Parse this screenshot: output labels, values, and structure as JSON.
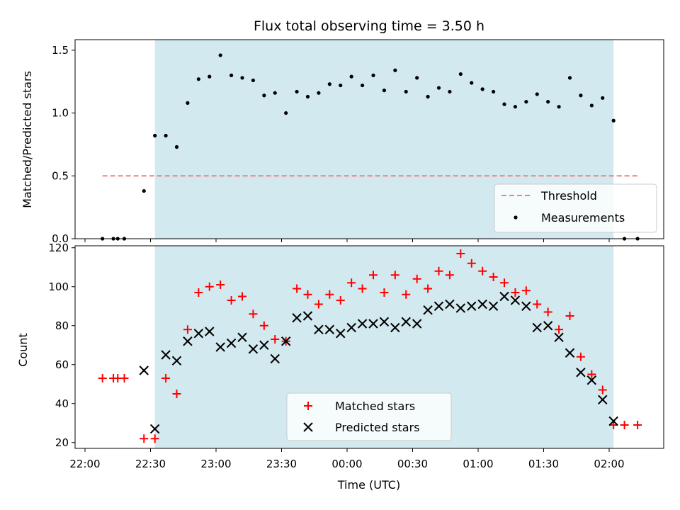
{
  "chart_data": [
    {
      "type": "scatter",
      "title": "Flux total observing time = 3.50 h",
      "ylabel": "Matched/Predicted stars",
      "xlabel": "",
      "ylim": [
        0,
        1.55
      ],
      "yticks": [
        "0.0",
        "0.5",
        "1.0",
        "1.5"
      ],
      "shaded_window": [
        "22:32",
        "02:02"
      ],
      "threshold": {
        "name": "Threshold",
        "value": 0.5,
        "x_start": "22:08",
        "x_end": "02:13",
        "color": "#f08080"
      },
      "series": [
        {
          "name": "Measurements",
          "color": "#000000",
          "x": [
            "22:08",
            "22:13",
            "22:15",
            "22:18",
            "22:27",
            "22:32",
            "22:37",
            "22:42",
            "22:47",
            "22:52",
            "22:57",
            "23:02",
            "23:07",
            "23:12",
            "23:17",
            "23:22",
            "23:27",
            "23:32",
            "23:37",
            "23:42",
            "23:47",
            "23:52",
            "23:57",
            "00:02",
            "00:07",
            "00:12",
            "00:17",
            "00:22",
            "00:27",
            "00:32",
            "00:37",
            "00:42",
            "00:47",
            "00:52",
            "00:57",
            "01:02",
            "01:07",
            "01:12",
            "01:17",
            "01:22",
            "01:27",
            "01:32",
            "01:37",
            "01:42",
            "01:47",
            "01:52",
            "01:57",
            "02:02",
            "02:07",
            "02:13"
          ],
          "y": [
            0,
            0,
            0,
            0,
            0.38,
            0.82,
            0.82,
            0.73,
            1.08,
            1.27,
            1.29,
            1.46,
            1.3,
            1.28,
            1.26,
            1.14,
            1.16,
            1.0,
            1.17,
            1.13,
            1.16,
            1.23,
            1.22,
            1.29,
            1.22,
            1.3,
            1.18,
            1.34,
            1.17,
            1.28,
            1.13,
            1.2,
            1.17,
            1.31,
            1.24,
            1.19,
            1.17,
            1.07,
            1.05,
            1.09,
            1.15,
            1.09,
            1.05,
            1.28,
            1.14,
            1.06,
            1.12,
            0.94,
            0,
            0
          ]
        }
      ]
    },
    {
      "type": "scatter",
      "title": "",
      "xlabel": "Time (UTC)",
      "ylabel": "Count",
      "ylim": [
        17,
        121
      ],
      "yticks": [
        "20",
        "40",
        "60",
        "80",
        "100",
        "120"
      ],
      "x_ticks": [
        "22:00",
        "22:30",
        "23:00",
        "23:30",
        "00:00",
        "00:30",
        "01:00",
        "01:30",
        "02:00"
      ],
      "shaded_window": [
        "22:32",
        "02:02"
      ],
      "series": [
        {
          "name": "Matched stars",
          "color": "#ff0000",
          "marker": "plus",
          "x": [
            "22:08",
            "22:13",
            "22:15",
            "22:18",
            "22:27",
            "22:32",
            "22:37",
            "22:42",
            "22:47",
            "22:52",
            "22:57",
            "23:02",
            "23:07",
            "23:12",
            "23:17",
            "23:22",
            "23:27",
            "23:32",
            "23:37",
            "23:42",
            "23:47",
            "23:52",
            "23:57",
            "00:02",
            "00:07",
            "00:12",
            "00:17",
            "00:22",
            "00:27",
            "00:32",
            "00:37",
            "00:42",
            "00:47",
            "00:52",
            "00:57",
            "01:02",
            "01:07",
            "01:12",
            "01:17",
            "01:22",
            "01:27",
            "01:32",
            "01:37",
            "01:42",
            "01:47",
            "01:52",
            "01:57",
            "02:02",
            "02:07",
            "02:13"
          ],
          "y": [
            53,
            53,
            53,
            53,
            22,
            22,
            53,
            45,
            78,
            97,
            100,
            101,
            93,
            95,
            86,
            80,
            73,
            72,
            99,
            96,
            91,
            96,
            93,
            102,
            99,
            106,
            97,
            106,
            96,
            104,
            99,
            108,
            106,
            117,
            112,
            108,
            105,
            102,
            97,
            98,
            91,
            87,
            78,
            85,
            64,
            55,
            47,
            29,
            29,
            29
          ]
        },
        {
          "name": "Predicted stars",
          "color": "#000000",
          "marker": "x",
          "x": [
            "22:27",
            "22:32",
            "22:37",
            "22:42",
            "22:47",
            "22:52",
            "22:57",
            "23:02",
            "23:07",
            "23:12",
            "23:17",
            "23:22",
            "23:27",
            "23:32",
            "23:37",
            "23:42",
            "23:47",
            "23:52",
            "23:57",
            "00:02",
            "00:07",
            "00:12",
            "00:17",
            "00:22",
            "00:27",
            "00:32",
            "00:37",
            "00:42",
            "00:47",
            "00:52",
            "00:57",
            "01:02",
            "01:07",
            "01:12",
            "01:17",
            "01:22",
            "01:27",
            "01:32",
            "01:37",
            "01:42",
            "01:47",
            "01:52",
            "01:57",
            "02:02"
          ],
          "y": [
            57,
            27,
            65,
            62,
            72,
            76,
            77,
            69,
            71,
            74,
            68,
            70,
            63,
            72,
            84,
            85,
            78,
            78,
            76,
            79,
            81,
            81,
            82,
            79,
            82,
            81,
            88,
            90,
            91,
            89,
            90,
            91,
            90,
            95,
            93,
            90,
            79,
            80,
            74,
            66,
            56,
            52,
            42,
            31
          ]
        }
      ]
    }
  ],
  "legend_top": [
    "Threshold",
    "Measurements"
  ],
  "legend_bottom": [
    "Matched stars",
    "Predicted stars"
  ],
  "colors": {
    "shade": "#d2e9ef",
    "threshold": "#f08080",
    "matched": "#ff0000",
    "predicted": "#000000"
  }
}
